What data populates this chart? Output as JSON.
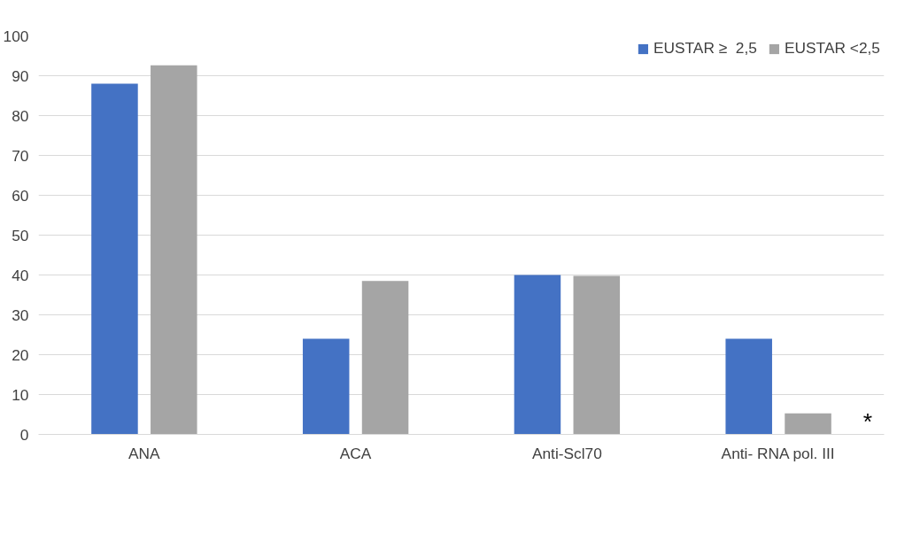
{
  "chart_data": {
    "type": "bar",
    "categories": [
      "ANA",
      "ACA",
      "Anti-Scl70",
      "Anti- RNA pol. III"
    ],
    "series": [
      {
        "name": "EUSTAR ≥  2,5",
        "color": "#4472c4",
        "values": [
          88,
          24,
          40,
          24
        ]
      },
      {
        "name": "EUSTAR <2,5",
        "color": "#a5a5a5",
        "values": [
          92.6,
          38.5,
          39.8,
          5.3
        ]
      }
    ],
    "ylim": [
      0,
      100
    ],
    "yticks": [
      0,
      10,
      20,
      30,
      40,
      50,
      60,
      70,
      80,
      90,
      100
    ],
    "grid": "y",
    "legend": "top right",
    "annotations": [
      "*"
    ]
  }
}
